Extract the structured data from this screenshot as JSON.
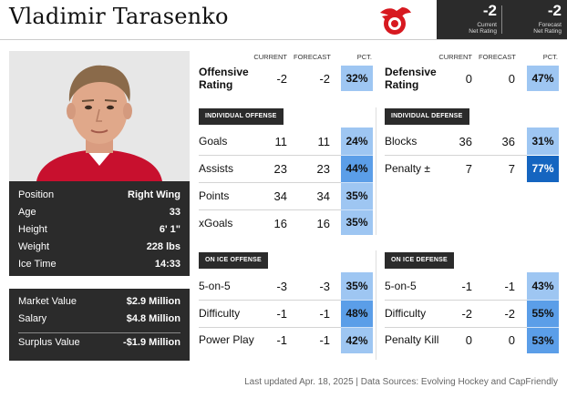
{
  "player": {
    "name": "Vladimir Tarasenko"
  },
  "team_logo": {
    "icon": "red-wings-logo",
    "color": "#d71920"
  },
  "ratings": {
    "current_value": "-2",
    "current_label_1": "Current",
    "current_label_2": "Net Rating",
    "forecast_value": "-2",
    "forecast_label_1": "Forecast",
    "forecast_label_2": "Net Rating"
  },
  "profile": {
    "rows": [
      {
        "label": "Position",
        "value": "Right Wing"
      },
      {
        "label": "Age",
        "value": "33"
      },
      {
        "label": "Height",
        "value": "6' 1\""
      },
      {
        "label": "Weight",
        "value": "228 lbs"
      },
      {
        "label": "Ice Time",
        "value": "14:33"
      }
    ]
  },
  "contract": {
    "market_value_label": "Market Value",
    "market_value": "$2.9 Million",
    "salary_label": "Salary",
    "salary": "$4.8 Million",
    "surplus_label": "Surplus Value",
    "surplus": "-$1.9 Million"
  },
  "columns": {
    "current": "CURRENT",
    "forecast": "FORECAST",
    "pct": "PCT."
  },
  "offense": {
    "rating_label_1": "Offensive",
    "rating_label_2": "Rating",
    "current": "-2",
    "forecast": "-2",
    "pct": "32%",
    "individual_tag": "INDIVIDUAL OFFENSE",
    "individual": [
      {
        "label": "Goals",
        "current": "11",
        "forecast": "11",
        "pct": "24%"
      },
      {
        "label": "Assists",
        "current": "23",
        "forecast": "23",
        "pct": "44%"
      },
      {
        "label": "Points",
        "current": "34",
        "forecast": "34",
        "pct": "35%"
      },
      {
        "label": "xGoals",
        "current": "16",
        "forecast": "16",
        "pct": "35%"
      }
    ],
    "onice_tag": "ON ICE OFFENSE",
    "onice": [
      {
        "label": "5-on-5",
        "current": "-3",
        "forecast": "-3",
        "pct": "35%"
      },
      {
        "label": "Difficulty",
        "current": "-1",
        "forecast": "-1",
        "pct": "48%"
      },
      {
        "label": "Power Play",
        "current": "-1",
        "forecast": "-1",
        "pct": "42%"
      }
    ]
  },
  "defense": {
    "rating_label_1": "Defensive",
    "rating_label_2": "Rating",
    "current": "0",
    "forecast": "0",
    "pct": "47%",
    "individual_tag": "INDIVIDUAL DEFENSE",
    "individual": [
      {
        "label": "Blocks",
        "current": "36",
        "forecast": "36",
        "pct": "31%"
      },
      {
        "label": "Penalty ±",
        "current": "7",
        "forecast": "7",
        "pct": "77%"
      }
    ],
    "onice_tag": "ON ICE DEFENSE",
    "onice": [
      {
        "label": "5-on-5",
        "current": "-1",
        "forecast": "-1",
        "pct": "43%"
      },
      {
        "label": "Difficulty",
        "current": "-2",
        "forecast": "-2",
        "pct": "55%"
      },
      {
        "label": "Penalty Kill",
        "current": "0",
        "forecast": "0",
        "pct": "53%"
      }
    ]
  },
  "colors": {
    "pct_light": "#9ec6f2",
    "pct_mid": "#5b9ee8",
    "pct_dark": "#1565c0",
    "panel_dark": "#2b2b2b"
  },
  "footer": {
    "text": "Last updated Apr. 18, 2025 | Data Sources: Evolving Hockey and CapFriendly"
  }
}
